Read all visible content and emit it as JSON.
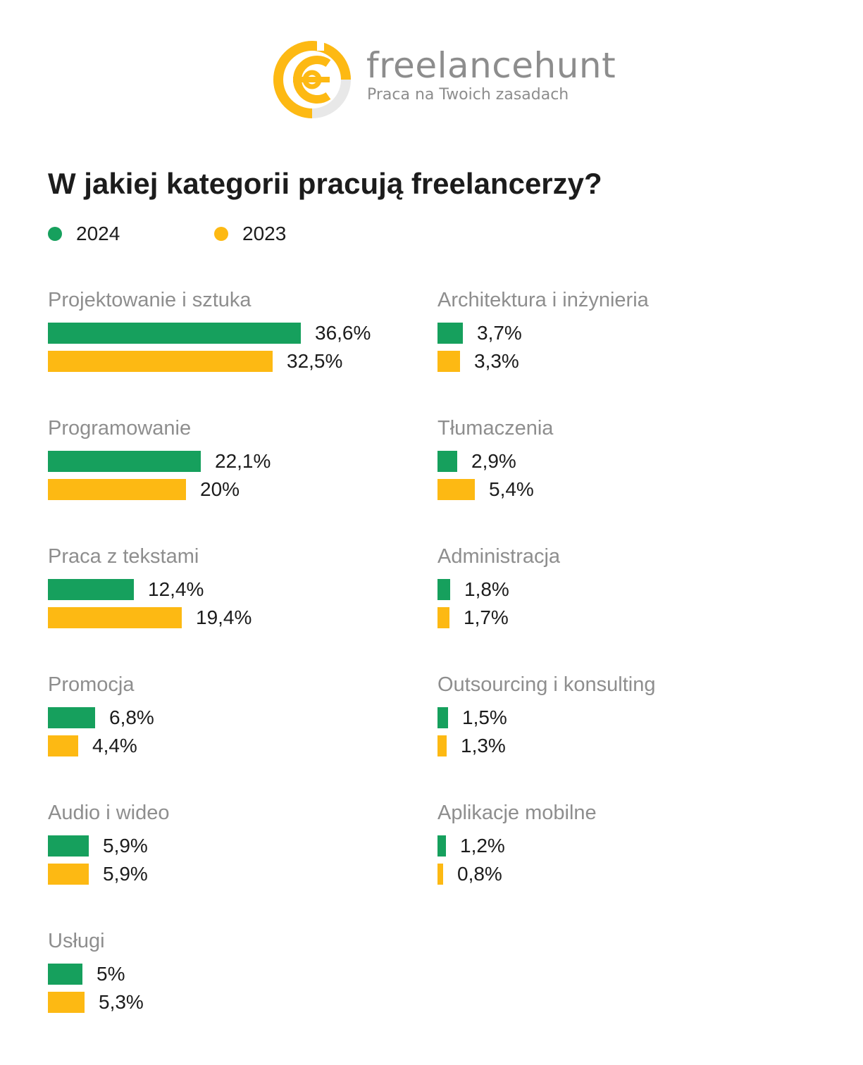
{
  "brand": {
    "name": "freelancehunt",
    "tagline": "Praca na Twoich zasadach",
    "logo_icon": "freelancehunt-logo-icon"
  },
  "colors": {
    "series_2024": "#16a05d",
    "series_2023": "#fdb913",
    "logo_yellow": "#fdb913",
    "logo_gray": "#e8e8e8"
  },
  "chart_data": {
    "type": "bar",
    "orientation": "horizontal",
    "title": "W jakiej kategorii pracują freelancerzy?",
    "legend_position": "top-left",
    "unit": "%",
    "series": [
      {
        "name": "2024",
        "color": "#16a05d"
      },
      {
        "name": "2023",
        "color": "#fdb913"
      }
    ],
    "categories": [
      {
        "name": "Projektowanie i sztuka",
        "v2024": 36.6,
        "v2023": 32.5,
        "l2024": "36,6%",
        "l2023": "32,5%"
      },
      {
        "name": "Programowanie",
        "v2024": 22.1,
        "v2023": 20,
        "l2024": "22,1%",
        "l2023": "20%"
      },
      {
        "name": "Praca z tekstami",
        "v2024": 12.4,
        "v2023": 19.4,
        "l2024": "12,4%",
        "l2023": "19,4%"
      },
      {
        "name": "Promocja",
        "v2024": 6.8,
        "v2023": 4.4,
        "l2024": "6,8%",
        "l2023": "4,4%"
      },
      {
        "name": "Audio i wideo",
        "v2024": 5.9,
        "v2023": 5.9,
        "l2024": "5,9%",
        "l2023": "5,9%"
      },
      {
        "name": "Usługi",
        "v2024": 5,
        "v2023": 5.3,
        "l2024": "5%",
        "l2023": "5,3%"
      },
      {
        "name": "Architektura i inżynieria",
        "v2024": 3.7,
        "v2023": 3.3,
        "l2024": "3,7%",
        "l2023": "3,3%"
      },
      {
        "name": "Tłumaczenia",
        "v2024": 2.9,
        "v2023": 5.4,
        "l2024": "2,9%",
        "l2023": "5,4%"
      },
      {
        "name": "Administracja",
        "v2024": 1.8,
        "v2023": 1.7,
        "l2024": "1,8%",
        "l2023": "1,7%"
      },
      {
        "name": "Outsourcing i konsulting",
        "v2024": 1.5,
        "v2023": 1.3,
        "l2024": "1,5%",
        "l2023": "1,3%"
      },
      {
        "name": "Aplikacje mobilne",
        "v2024": 1.2,
        "v2023": 0.8,
        "l2024": "1,2%",
        "l2023": "0,8%"
      }
    ]
  }
}
